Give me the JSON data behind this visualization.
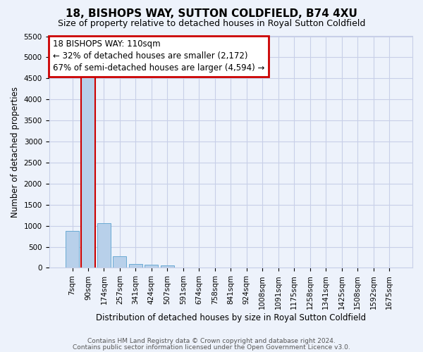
{
  "title": "18, BISHOPS WAY, SUTTON COLDFIELD, B74 4XU",
  "subtitle": "Size of property relative to detached houses in Royal Sutton Coldfield",
  "xlabel": "Distribution of detached houses by size in Royal Sutton Coldfield",
  "ylabel": "Number of detached properties",
  "footnote1": "Contains HM Land Registry data © Crown copyright and database right 2024.",
  "footnote2": "Contains public sector information licensed under the Open Government Licence v3.0.",
  "bin_labels": [
    "7sqm",
    "90sqm",
    "174sqm",
    "257sqm",
    "341sqm",
    "424sqm",
    "507sqm",
    "591sqm",
    "674sqm",
    "758sqm",
    "841sqm",
    "924sqm",
    "1008sqm",
    "1091sqm",
    "1175sqm",
    "1258sqm",
    "1341sqm",
    "1425sqm",
    "1508sqm",
    "1592sqm",
    "1675sqm"
  ],
  "bar_values": [
    880,
    4560,
    1060,
    280,
    90,
    70,
    55,
    0,
    0,
    0,
    0,
    0,
    0,
    0,
    0,
    0,
    0,
    0,
    0,
    0,
    0
  ],
  "bar_color": "#b8d0ea",
  "bar_edge_color": "#6aaad4",
  "highlight_bar_index": 1,
  "highlight_line_color": "#cc0000",
  "ylim": [
    0,
    5500
  ],
  "yticks": [
    0,
    500,
    1000,
    1500,
    2000,
    2500,
    3000,
    3500,
    4000,
    4500,
    5000,
    5500
  ],
  "annotation_line1": "18 BISHOPS WAY: 110sqm",
  "annotation_line2": "← 32% of detached houses are smaller (2,172)",
  "annotation_line3": "67% of semi-detached houses are larger (4,594) →",
  "bg_color": "#edf2fb",
  "grid_color": "#c8cfe8",
  "title_fontsize": 11,
  "subtitle_fontsize": 9,
  "ylabel_fontsize": 8.5,
  "xlabel_fontsize": 8.5,
  "tick_fontsize": 7.5,
  "annot_fontsize": 8.5,
  "footnote_fontsize": 6.5
}
